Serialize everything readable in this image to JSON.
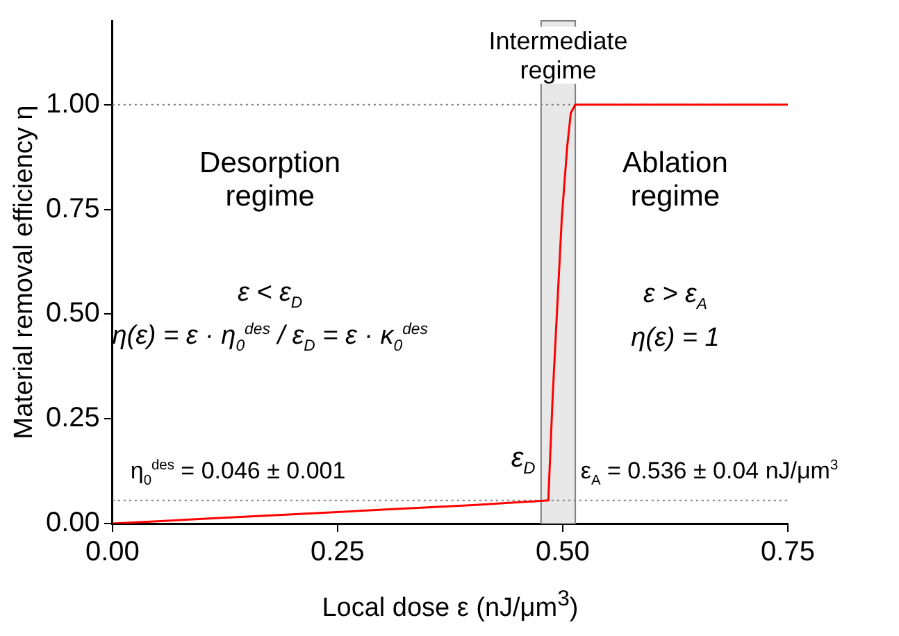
{
  "chart_data": {
    "type": "line",
    "xlabel": "Local dose ε (nJ/μm$^{3}$)",
    "ylabel": "Material removal efficiency η",
    "x": [
      0,
      0.1,
      0.2,
      0.3,
      0.4,
      0.484,
      0.489,
      0.499,
      0.505,
      0.509,
      0.514,
      0.75
    ],
    "series": [
      {
        "color": "#ff0000",
        "values": [
          0,
          0.011,
          0.022,
          0.033,
          0.044,
          0.055,
          0.31,
          0.73,
          0.9,
          0.98,
          1.0,
          1.0
        ]
      }
    ],
    "xlim": [
      0,
      0.75
    ],
    "xticks": [
      {
        "value": 0,
        "label": "0.00"
      },
      0.25,
      {
        "value": 0.5,
        "label": "0.50"
      },
      0.75
    ],
    "ylim": [
      0,
      1.2
    ],
    "yticks": [
      {
        "value": 0,
        "label": "0.00"
      },
      0.25,
      {
        "value": 0.5,
        "label": "0.50"
      },
      0.75,
      {
        "value": 1,
        "label": "1.00"
      }
    ],
    "grid": false,
    "legend": false,
    "marker": "none",
    "line_style": "solid",
    "bands": [
      {
        "axis": "x",
        "from": 0.476,
        "to": 0.514,
        "label": "Intermediate regime",
        "color": "#d9d9d9"
      }
    ],
    "ref_lines": [
      {
        "axis": "y",
        "value": 1.0,
        "label": null,
        "color": "#808080",
        "line_style": "dotted"
      },
      {
        "axis": "y",
        "value": 0.055,
        "label": null,
        "color": "#808080",
        "line_style": "dotted"
      }
    ],
    "annotations": [
      "Desorption regime",
      "ε < ε$_{D}$",
      "η(ε) = ε · η$_{0}$$^{des}$ / ε$_{D}$ = ε · κ$_{0}$$^{des}$",
      "Ablation regime",
      "ε > ε$_{A}$",
      "η(ε) = 1",
      "η$_{0}$$^{des}$ = 0.046 ± 0.001",
      {
        "text": "ε$_{D}$",
        "x": 0.484,
        "y": 0.055
      },
      "ε$_{A}$ = 0.536 ± 0.04 nJ/μm$^{3}$"
    ]
  }
}
